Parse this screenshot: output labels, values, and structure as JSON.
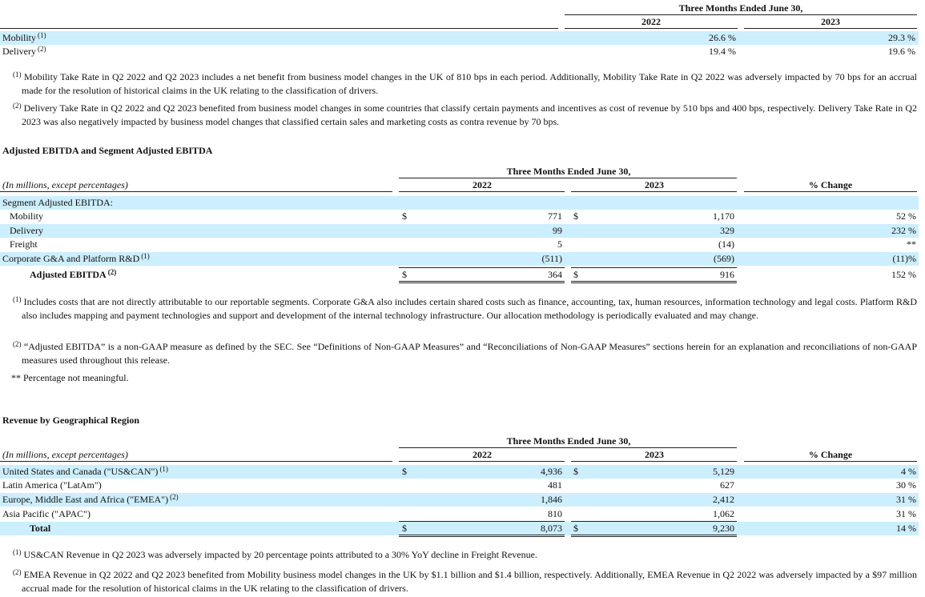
{
  "take_rate": {
    "header": "Three Months Ended June 30,",
    "years": [
      "2022",
      "2023"
    ],
    "rows": [
      {
        "label": "Mobility",
        "note": "(1)",
        "values": [
          "26.6 %",
          "29.3 %"
        ]
      },
      {
        "label": "Delivery",
        "note": "(2)",
        "values": [
          "19.4 %",
          "19.6 %"
        ]
      }
    ],
    "footnotes": [
      {
        "marker": "(1)",
        "text": "Mobility Take Rate in Q2 2022 and Q2 2023 includes a net benefit from business model changes in the UK of 810 bps in each period. Additionally, Mobility Take Rate in Q2 2022 was adversely impacted by 70 bps for an accrual made for the resolution of historical claims in the UK relating to the classification of drivers."
      },
      {
        "marker": "(2)",
        "text": "Delivery Take Rate in Q2 2022 and Q2 2023 benefited from business model changes in some countries that classify certain payments and incentives as cost of revenue by 510 bps and 400 bps, respectively. Delivery Take Rate in Q2 2023 was also negatively impacted by business model changes that classified certain sales and marketing costs as contra revenue by 70 bps."
      }
    ]
  },
  "ebitda": {
    "title": "Adjusted EBITDA and Segment Adjusted EBITDA",
    "header": "Three Months Ended June 30,",
    "units": "(In millions, except percentages)",
    "years": [
      "2022",
      "2023"
    ],
    "change_header": "% Change",
    "rows": [
      {
        "label": "Segment Adjusted EBITDA:"
      },
      {
        "label": "Mobility",
        "cells": [
          {
            "currency": "$",
            "value": "771"
          },
          {
            "currency": "$",
            "value": "1,170"
          }
        ],
        "change": "52 %"
      },
      {
        "label": "Delivery",
        "cells": [
          {
            "value": "99"
          },
          {
            "value": "329"
          }
        ],
        "change": "232 %"
      },
      {
        "label": "Freight",
        "cells": [
          {
            "value": "5"
          },
          {
            "value": "(14)"
          }
        ],
        "change": "**"
      },
      {
        "label": "Corporate G&A and Platform R&D",
        "note": "(1)",
        "cells": [
          {
            "value": "(511)"
          },
          {
            "value": "(569)"
          }
        ],
        "change": "(11)%"
      },
      {
        "label": "Adjusted EBITDA",
        "note": "(2)",
        "cells": [
          {
            "currency": "$",
            "value": "364"
          },
          {
            "currency": "$",
            "value": "916"
          }
        ],
        "change": "152 %"
      }
    ],
    "footnotes": [
      {
        "marker": "(1)",
        "text": "Includes costs that are not directly attributable to our reportable segments. Corporate G&A also includes certain shared costs such as finance, accounting, tax, human resources, information technology and legal costs. Platform R&D also includes mapping and payment technologies and support and development of the internal technology infrastructure. Our allocation methodology is periodically evaluated and may change."
      },
      {
        "marker": "(2)",
        "text": "“Adjusted EBITDA” is a non-GAAP measure as defined by the SEC. See “Definitions of Non-GAAP Measures” and “Reconciliations of Non-GAAP Measures” sections herein for an explanation and reconciliations of non-GAAP measures used throughout this release."
      },
      {
        "marker": "**",
        "text": "Percentage not meaningful."
      }
    ]
  },
  "revenue": {
    "title": "Revenue by Geographical Region",
    "header": "Three Months Ended June 30,",
    "units": "(In millions, except percentages)",
    "years": [
      "2022",
      "2023"
    ],
    "change_header": "% Change",
    "rows": [
      {
        "label": "United States and Canada (\"US&CAN\")",
        "note": "(1)",
        "cells": [
          {
            "currency": "$",
            "value": "4,936"
          },
          {
            "currency": "$",
            "value": "5,129"
          }
        ],
        "change": "4 %"
      },
      {
        "label": "Latin America (\"LatAm\")",
        "cells": [
          {
            "value": "481"
          },
          {
            "value": "627"
          }
        ],
        "change": "30 %"
      },
      {
        "label": "Europe, Middle East and Africa (\"EMEA\")",
        "note": "(2)",
        "cells": [
          {
            "value": "1,846"
          },
          {
            "value": "2,412"
          }
        ],
        "change": "31 %"
      },
      {
        "label": "Asia Pacific (\"APAC\")",
        "cells": [
          {
            "value": "810"
          },
          {
            "value": "1,062"
          }
        ],
        "change": "31 %"
      },
      {
        "label": "Total",
        "cells": [
          {
            "currency": "$",
            "value": "8,073"
          },
          {
            "currency": "$",
            "value": "9,230"
          }
        ],
        "change": "14 %"
      }
    ],
    "footnotes": [
      {
        "marker": "(1)",
        "text": "US&CAN Revenue in Q2 2023 was adversely impacted by 20 percentage points attributed to a 30% YoY decline in Freight Revenue."
      },
      {
        "marker": "(2)",
        "text": "EMEA Revenue in Q2 2022 and Q2 2023 benefited from Mobility business model changes in the UK by $1.1 billion and $1.4 billion, respectively. Additionally, EMEA Revenue in Q2 2022 was adversely impacted by a $97 million accrual made for the resolution of historical claims in the UK relating to the classification of drivers."
      }
    ]
  }
}
